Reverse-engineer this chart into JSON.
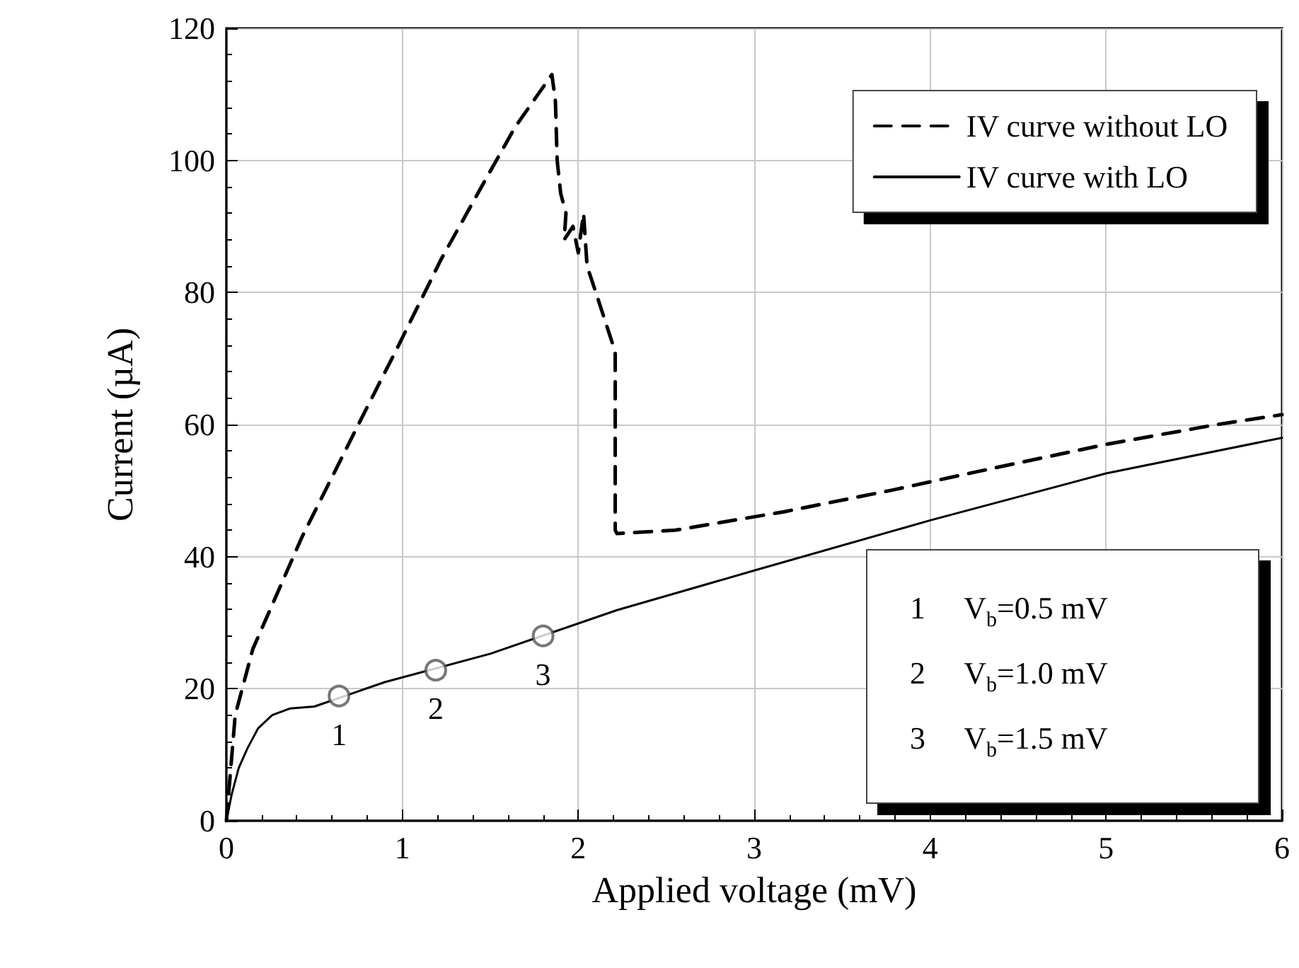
{
  "chart_data": {
    "type": "line",
    "xlabel": "Applied voltage (mV)",
    "ylabel": "Current (µA)",
    "xlim": [
      0,
      6
    ],
    "ylim": [
      0,
      120
    ],
    "xticks": [
      0,
      1,
      2,
      3,
      4,
      5,
      6
    ],
    "yticks": [
      0,
      20,
      40,
      60,
      80,
      100,
      120
    ],
    "grid": true,
    "legend": "top right",
    "series": [
      {
        "name": "IV curve without LO",
        "color": "#000000",
        "line_style": "dashed",
        "marker": "none",
        "x": [
          0,
          0.05,
          0.15,
          0.43,
          0.75,
          0.96,
          1.22,
          1.45,
          1.64,
          1.85,
          1.87,
          1.88,
          1.9,
          1.93,
          1.92,
          1.97,
          2.0,
          2.03,
          2.05,
          2.1,
          2.21,
          2.21,
          2.22,
          2.55,
          3.17,
          3.77,
          4.36,
          5.0,
          5.63,
          6.0
        ],
        "values": [
          0,
          16,
          26,
          43,
          60,
          71,
          85,
          96,
          105,
          113,
          109,
          100,
          95,
          92,
          88,
          90,
          86,
          92,
          84,
          80,
          71,
          44,
          43.5,
          44,
          46.8,
          50,
          53.4,
          57,
          60,
          61.5
        ]
      },
      {
        "name": "IV curve with LO",
        "color": "#000000",
        "line_style": "solid",
        "marker": "none",
        "x": [
          0,
          0.03,
          0.07,
          0.12,
          0.18,
          0.26,
          0.36,
          0.5,
          0.9,
          1.5,
          2.22,
          3.0,
          4.0,
          5.0,
          6.0
        ],
        "values": [
          0,
          4,
          8,
          11,
          14,
          16,
          17,
          17.3,
          21,
          25.3,
          31.9,
          37.9,
          45.5,
          52.6,
          58
        ]
      },
      {
        "type": "scatter",
        "color": "#555555",
        "marker": "circle",
        "x": [
          0.64,
          1.19,
          1.8
        ],
        "values": [
          18.9,
          22.8,
          28
        ]
      }
    ],
    "annotations": [
      {
        "text": "1",
        "x": 0.64,
        "y": 18.9
      },
      {
        "text": "2",
        "x": 1.19,
        "y": 22.8
      },
      {
        "text": "3",
        "x": 1.8,
        "y": 28
      },
      "1     V$_{b}$=0.5 mV",
      "2     V$_{b}$=1.0 mV",
      "3     V$_{b}$=1.5 mV"
    ]
  }
}
